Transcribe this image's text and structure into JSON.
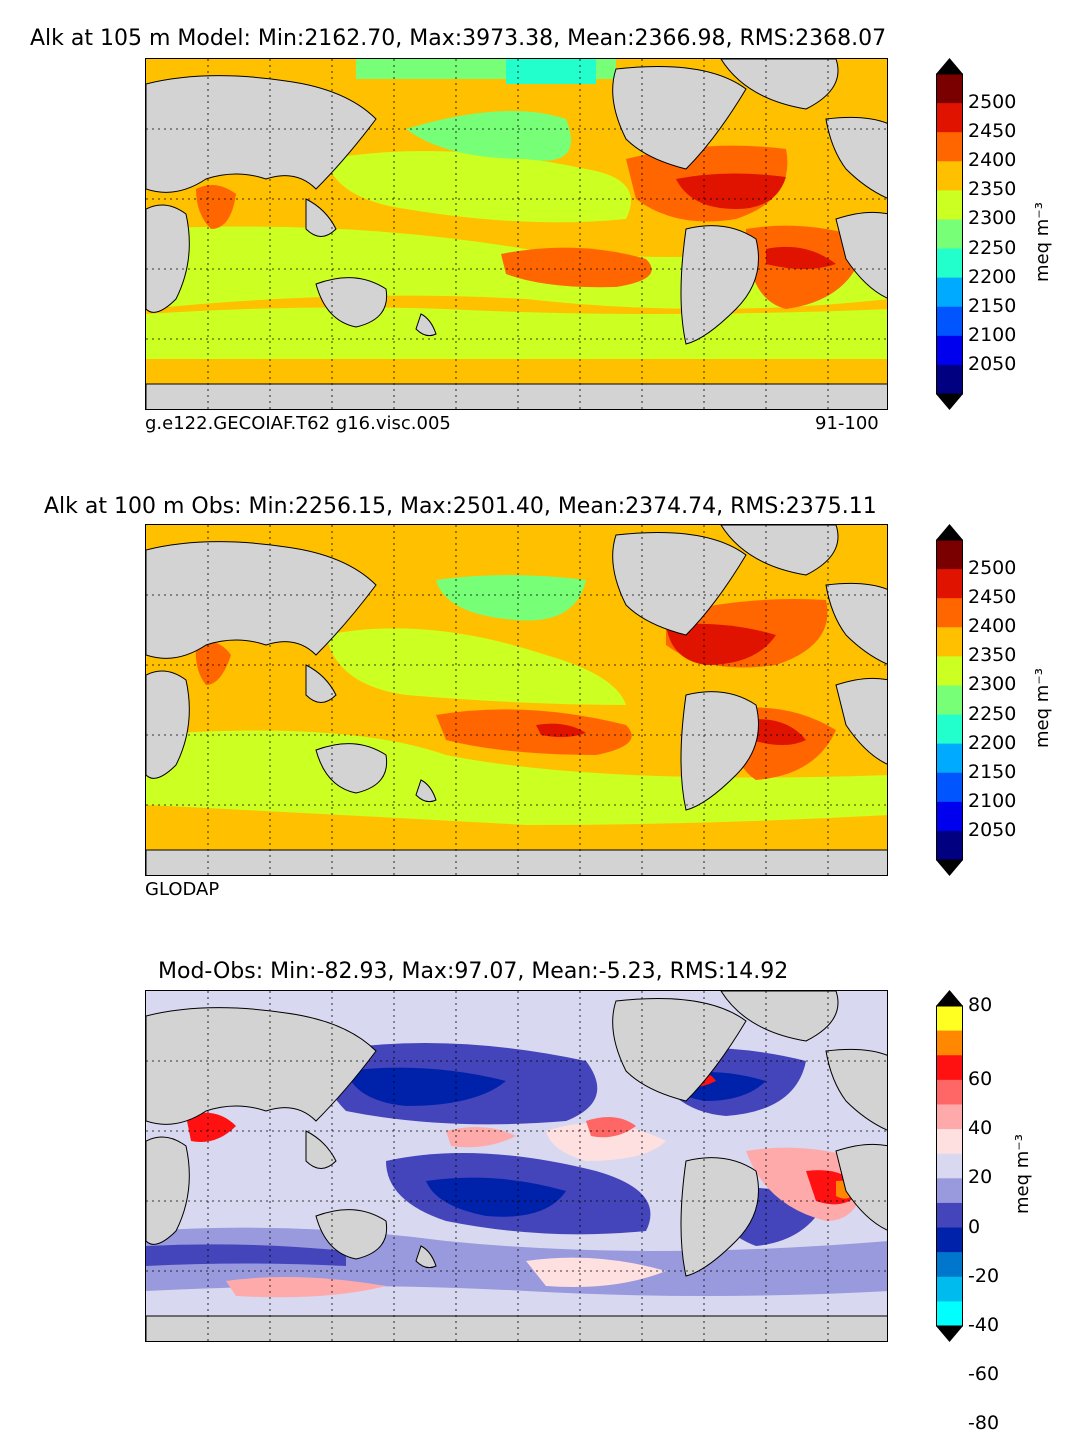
{
  "panels": [
    {
      "title": "Alk at 105 m Model: Min:2162.70, Max:3973.38, Mean:2366.98, RMS:2368.07",
      "caption_left": "g.e122.GECOIAF.T62 g16.visc.005",
      "caption_right": "91-100",
      "colorbar": {
        "unit_label": "meq m⁻³",
        "ticks": [
          "2500",
          "2450",
          "2400",
          "2350",
          "2300",
          "2250",
          "2200",
          "2150",
          "2100",
          "2050"
        ],
        "colors": [
          "#7a0000",
          "#e01200",
          "#ff6600",
          "#ffc000",
          "#ccff22",
          "#77ff77",
          "#22ffcc",
          "#00aaff",
          "#0055ff",
          "#0000ee",
          "#000080"
        ]
      }
    },
    {
      "title": "Alk at 100 m Obs: Min:2256.15, Max:2501.40, Mean:2374.74, RMS:2375.11",
      "caption_left": "GLODAP",
      "caption_right": "",
      "colorbar": {
        "unit_label": "meq m⁻³",
        "ticks": [
          "2500",
          "2450",
          "2400",
          "2350",
          "2300",
          "2250",
          "2200",
          "2150",
          "2100",
          "2050"
        ],
        "colors": [
          "#7a0000",
          "#e01200",
          "#ff6600",
          "#ffc000",
          "#ccff22",
          "#77ff77",
          "#22ffcc",
          "#00aaff",
          "#0055ff",
          "#0000ee",
          "#000080"
        ]
      }
    },
    {
      "title": "Mod-Obs: Min:-82.93, Max:97.07, Mean:-5.23, RMS:14.92",
      "caption_left": "",
      "caption_right": "",
      "colorbar": {
        "unit_label": "meq m⁻³",
        "ticks": [
          "80",
          "60",
          "40",
          "20",
          "0",
          "-20",
          "-40",
          "-60",
          "-80"
        ],
        "colors": [
          "#ffff22",
          "#ff8800",
          "#ff1111",
          "#ff6666",
          "#ffaaaa",
          "#ffe0e0",
          "#d8d8f0",
          "#9999dd",
          "#4444bb",
          "#0022aa",
          "#0077cc",
          "#00bbee",
          "#00ffff"
        ]
      }
    }
  ],
  "colors": {
    "land": "#d3d3d3",
    "ocean_base_model": "#ffc000",
    "ocean_base_obs": "#ffc000",
    "ocean_base_diff": "#d8d8f0"
  }
}
